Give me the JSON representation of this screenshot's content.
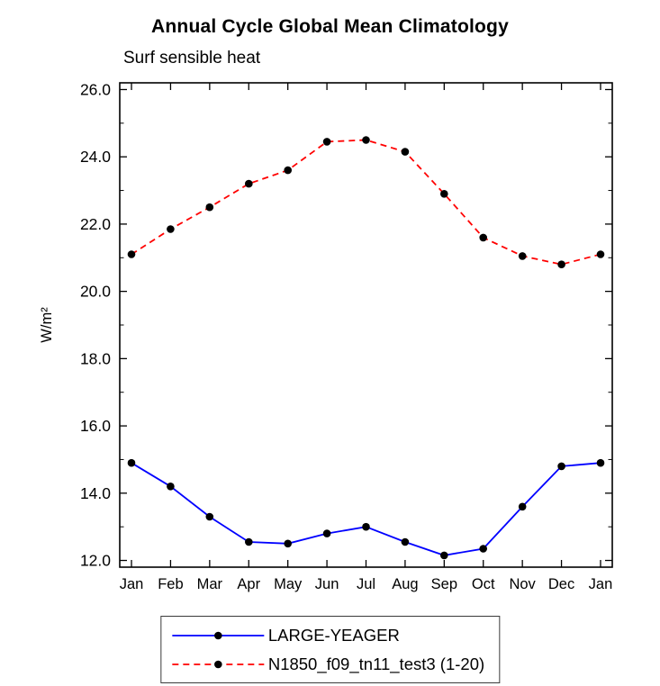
{
  "chart_data": {
    "type": "line",
    "title": "Annual Cycle Global Mean Climatology",
    "subtitle": "Surf sensible heat",
    "xlabel": "",
    "ylabel": "W/m²",
    "ylim": [
      12.0,
      26.0
    ],
    "ytick_step": 2.0,
    "yminor_step": 1.0,
    "ytick_labels": [
      "12.0",
      "14.0",
      "16.0",
      "18.0",
      "20.0",
      "22.0",
      "24.0",
      "26.0"
    ],
    "grid": false,
    "legend_position": "bottom",
    "marker_color": "#000000",
    "frame_color": "#000000",
    "categories": [
      "Jan",
      "Feb",
      "Mar",
      "Apr",
      "May",
      "Jun",
      "Jul",
      "Aug",
      "Sep",
      "Oct",
      "Nov",
      "Dec",
      "Jan"
    ],
    "series": [
      {
        "name": "LARGE-YEAGER",
        "color": "#0000ff",
        "dash": "",
        "values": [
          14.9,
          14.2,
          13.3,
          12.55,
          12.5,
          12.8,
          13.0,
          12.55,
          12.15,
          12.35,
          13.6,
          14.8,
          14.9
        ]
      },
      {
        "name": "N1850_f09_tn11_test3 (1-20)",
        "color": "#ff0000",
        "dash": "7,5",
        "values": [
          21.1,
          21.85,
          22.5,
          23.2,
          23.6,
          24.45,
          24.5,
          24.15,
          22.9,
          21.6,
          21.05,
          20.8,
          21.1
        ]
      }
    ]
  }
}
